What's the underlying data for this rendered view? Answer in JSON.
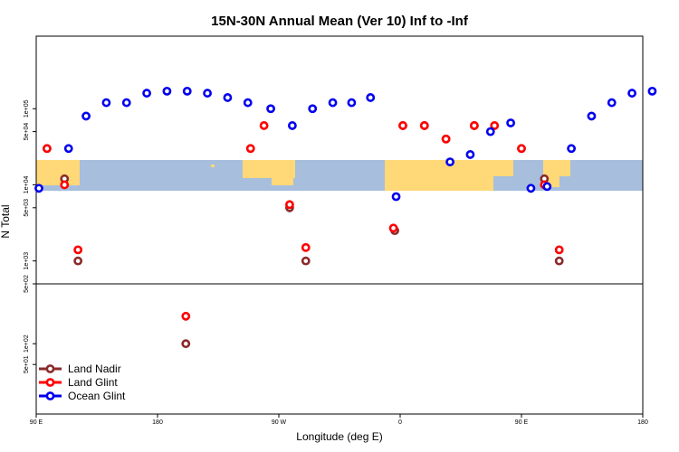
{
  "chart_data": {
    "type": "scatter",
    "title": "15N-30N Annual Mean (Ver 10)   Inf to -Inf",
    "xlabel": "Longitude (deg E)",
    "ylabel": "N Total",
    "x_ticks": [
      {
        "value": 90,
        "label": "90 E"
      },
      {
        "value": 180,
        "label": "180"
      },
      {
        "value": 270,
        "label": "90 W"
      },
      {
        "value": 360,
        "label": "0"
      },
      {
        "value": 450,
        "label": "90 E"
      },
      {
        "value": 540,
        "label": "180"
      }
    ],
    "xlim": [
      90,
      540
    ],
    "y_scale": "log",
    "y_ticks": [
      {
        "value": 50,
        "label": "5e+01"
      },
      {
        "value": 100,
        "label": "1e+02"
      },
      {
        "value": 500,
        "label": "5e+02"
      },
      {
        "value": 1000,
        "label": "1e+03"
      },
      {
        "value": 5000,
        "label": "5e+03"
      },
      {
        "value": 10000,
        "label": "1e+04"
      },
      {
        "value": 50000,
        "label": "5e+04"
      },
      {
        "value": 100000,
        "label": "1e+05"
      }
    ],
    "series": [
      {
        "name": "Land Nadir",
        "color": "#8b2a2a",
        "x": [
          98,
          111,
          121,
          201,
          249,
          278,
          290,
          356,
          362,
          378,
          394,
          415,
          450,
          467,
          478
        ],
        "y": [
          30000,
          12000,
          1000,
          100,
          30000,
          5000,
          1000,
          2500,
          60000,
          60000,
          40000,
          60000,
          30000,
          12000,
          1000
        ]
      },
      {
        "name": "Land Glint",
        "color": "#ff0000",
        "x": [
          98,
          111,
          121,
          201,
          249,
          259,
          278,
          290,
          355,
          362,
          378,
          394,
          415,
          430,
          450,
          467,
          478
        ],
        "y": [
          30000,
          10000,
          1400,
          250,
          30000,
          60000,
          5500,
          1500,
          2700,
          60000,
          60000,
          40000,
          60000,
          60000,
          30000,
          10000,
          1400
        ]
      },
      {
        "name": "Ocean Glint",
        "color": "#0000ee",
        "x": [
          92,
          114,
          127,
          142,
          157,
          172,
          187,
          202,
          217,
          232,
          247,
          264,
          280,
          295,
          310,
          324,
          338,
          357,
          397,
          412,
          427,
          442,
          457,
          469,
          487,
          502,
          517,
          532,
          547
        ],
        "y": [
          9000,
          30000,
          80000,
          120000,
          120000,
          160000,
          170000,
          170000,
          160000,
          140000,
          120000,
          100000,
          60000,
          100000,
          120000,
          120000,
          140000,
          7000,
          20000,
          25000,
          50000,
          65000,
          9000,
          9500,
          30000,
          80000,
          120000,
          160000,
          170000
        ]
      }
    ],
    "legend_position": "bottom-left"
  }
}
